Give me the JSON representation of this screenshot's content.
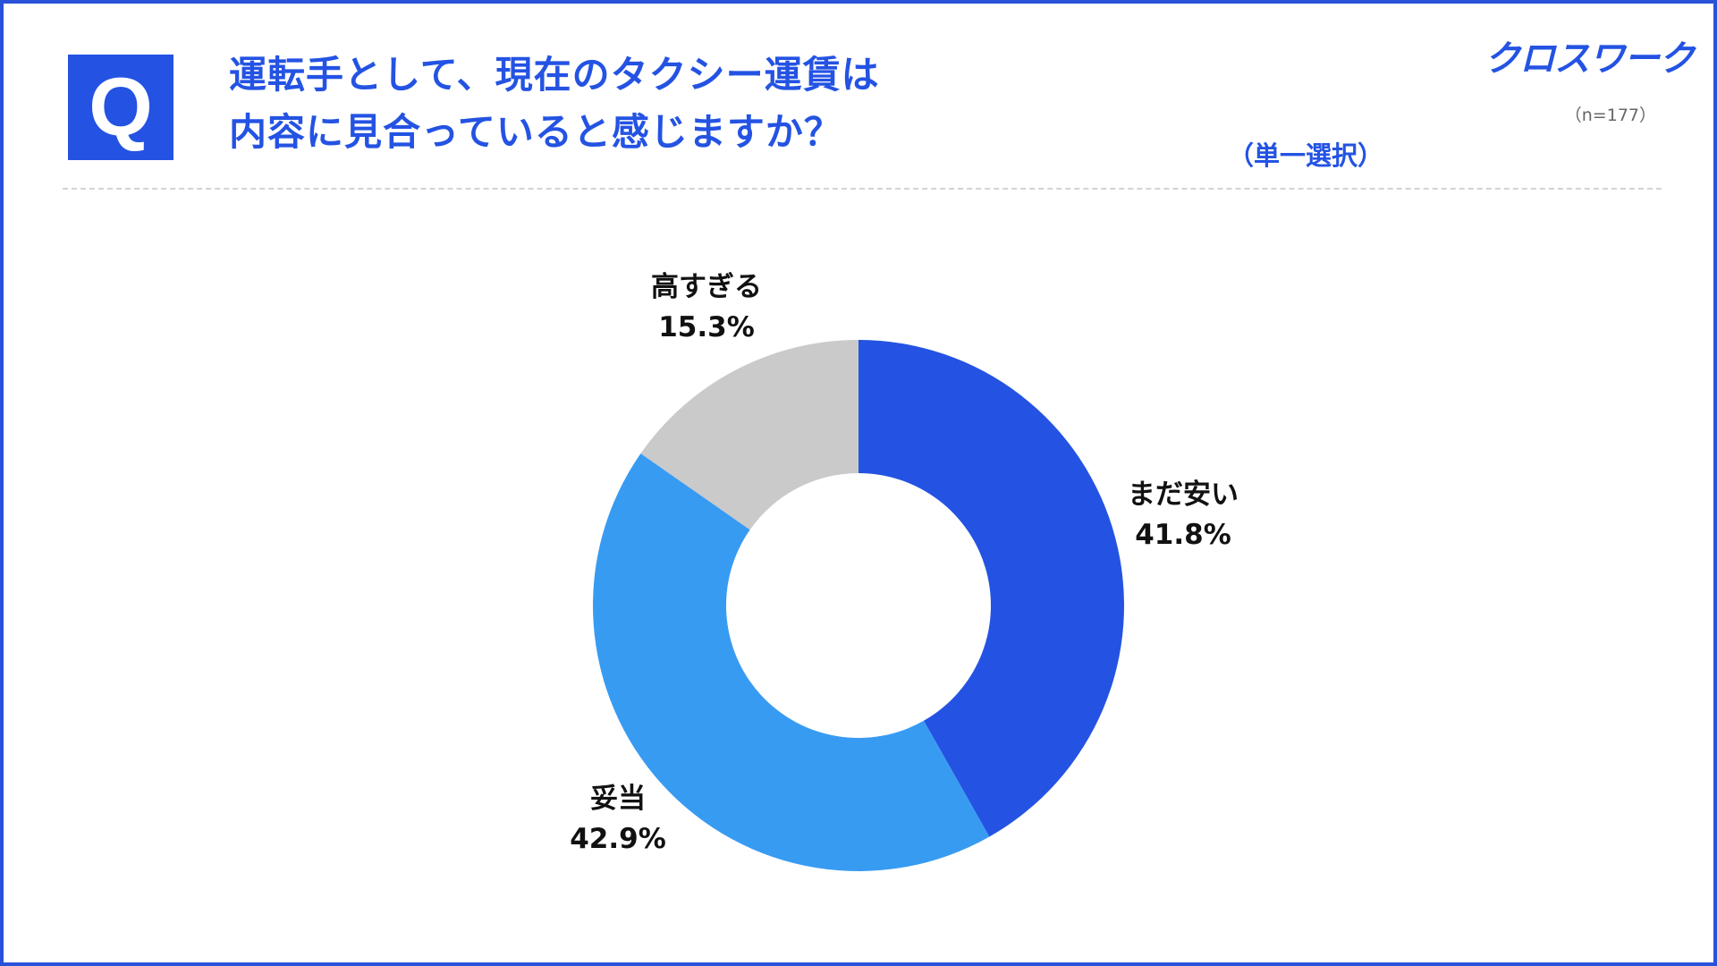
{
  "header": {
    "q_mark": "Q",
    "title_lines": [
      "運転手として、現在のタクシー運賃は",
      "内容に見合っていると感じますか？"
    ],
    "logo": "クロスワーク",
    "sample_size": "（n=177）",
    "question_type": "（単一選択）"
  },
  "colors": {
    "accent": "#2453e3",
    "border": "#2a52d9"
  },
  "chart_data": {
    "type": "pie",
    "donut": true,
    "start_angle_deg": 0,
    "direction": "clockwise",
    "slices": [
      {
        "name": "まだ安い",
        "value": 41.8,
        "label": "41.8%",
        "color": "#2453e3"
      },
      {
        "name": "妥当",
        "value": 42.9,
        "label": "42.9%",
        "color": "#389bf2"
      },
      {
        "name": "高すぎる",
        "value": 15.3,
        "label": "15.3%",
        "color": "#cacaca"
      }
    ]
  }
}
